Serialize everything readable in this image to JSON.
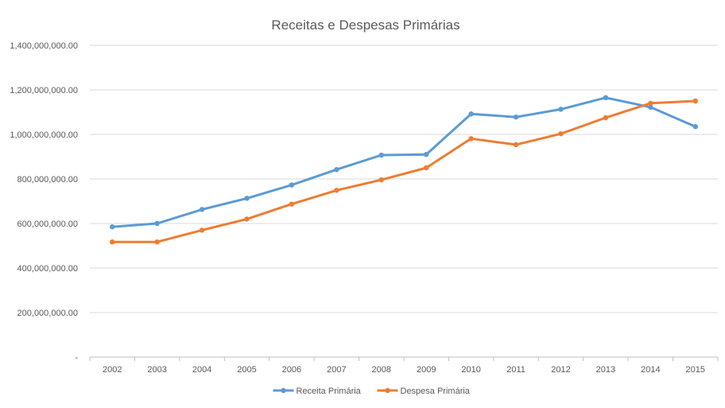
{
  "chart_data": {
    "type": "line",
    "title": "Receitas e Despesas Primárias",
    "xlabel": "",
    "ylabel": "",
    "categories": [
      "2002",
      "2003",
      "2004",
      "2005",
      "2006",
      "2007",
      "2008",
      "2009",
      "2010",
      "2011",
      "2012",
      "2013",
      "2014",
      "2015"
    ],
    "ylim": [
      0,
      1400000000
    ],
    "y_ticks": [
      0,
      200000000,
      400000000,
      600000000,
      800000000,
      1000000000,
      1200000000,
      1400000000
    ],
    "y_tick_labels": [
      "-",
      "200,000,000.00",
      "400,000,000.00",
      "600,000,000.00",
      "800,000,000.00",
      "1,000,000,000.00",
      "1,200,000,000.00",
      "1,400,000,000.00"
    ],
    "grid": true,
    "legend_position": "bottom",
    "series": [
      {
        "name": "Receita Primária",
        "color": "#5b9bd5",
        "values": [
          585000000,
          600000000,
          663000000,
          713000000,
          773000000,
          842000000,
          907000000,
          910000000,
          1092000000,
          1078000000,
          1113000000,
          1165000000,
          1122000000,
          1035000000
        ]
      },
      {
        "name": "Despesa Primária",
        "color": "#ed7d31",
        "values": [
          517000000,
          517000000,
          570000000,
          620000000,
          687000000,
          749000000,
          796000000,
          850000000,
          981000000,
          954000000,
          1003000000,
          1075000000,
          1140000000,
          1150000000
        ]
      }
    ]
  }
}
